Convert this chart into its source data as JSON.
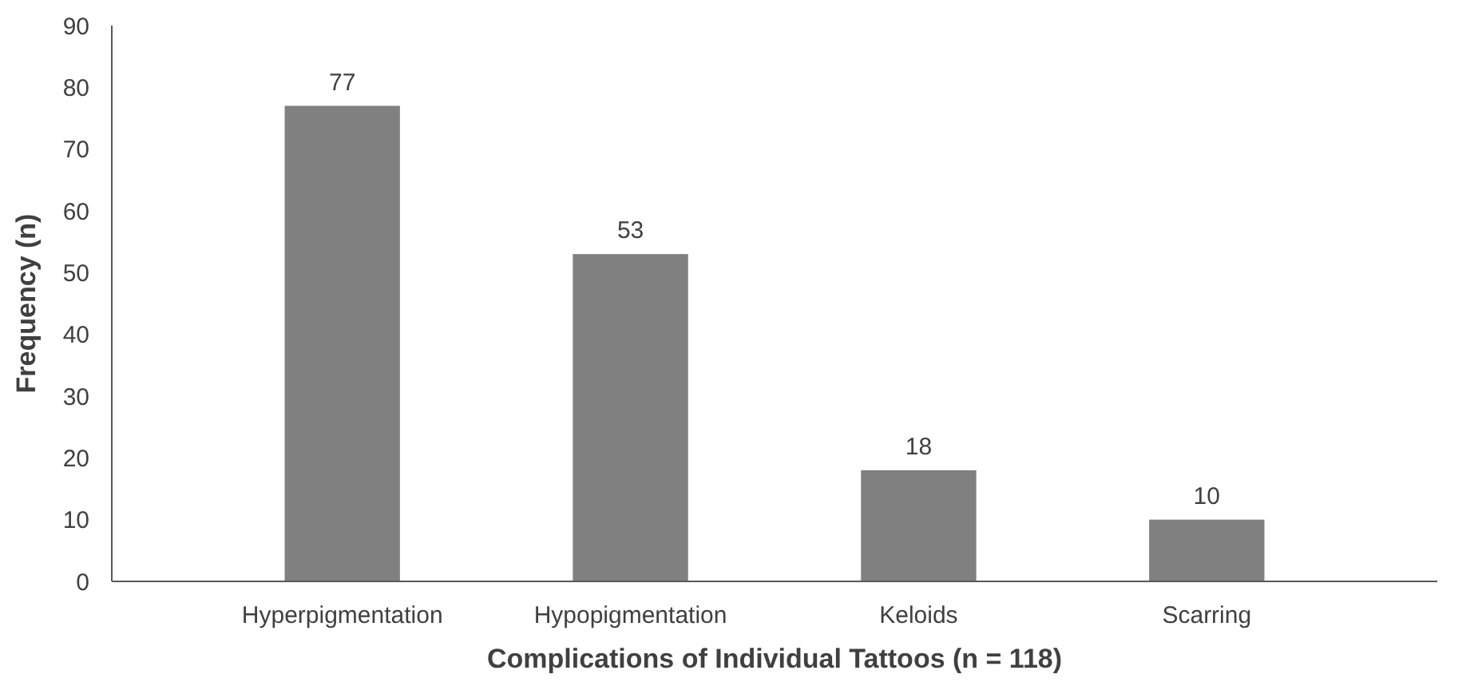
{
  "chart_data": {
    "type": "bar",
    "xlabel": "Complications of Individual Tattoos (n = 118)",
    "ylabel": "Frequency (n)",
    "categories": [
      "Hyperpigmentation",
      "Hypopigmentation",
      "Keloids",
      "Scarring"
    ],
    "values": [
      77,
      53,
      18,
      10
    ],
    "color": "#808080",
    "data_labels": true,
    "ylim": [
      0,
      90
    ],
    "yticks": [
      0,
      10,
      20,
      30,
      40,
      50,
      60,
      70,
      80,
      90
    ]
  }
}
